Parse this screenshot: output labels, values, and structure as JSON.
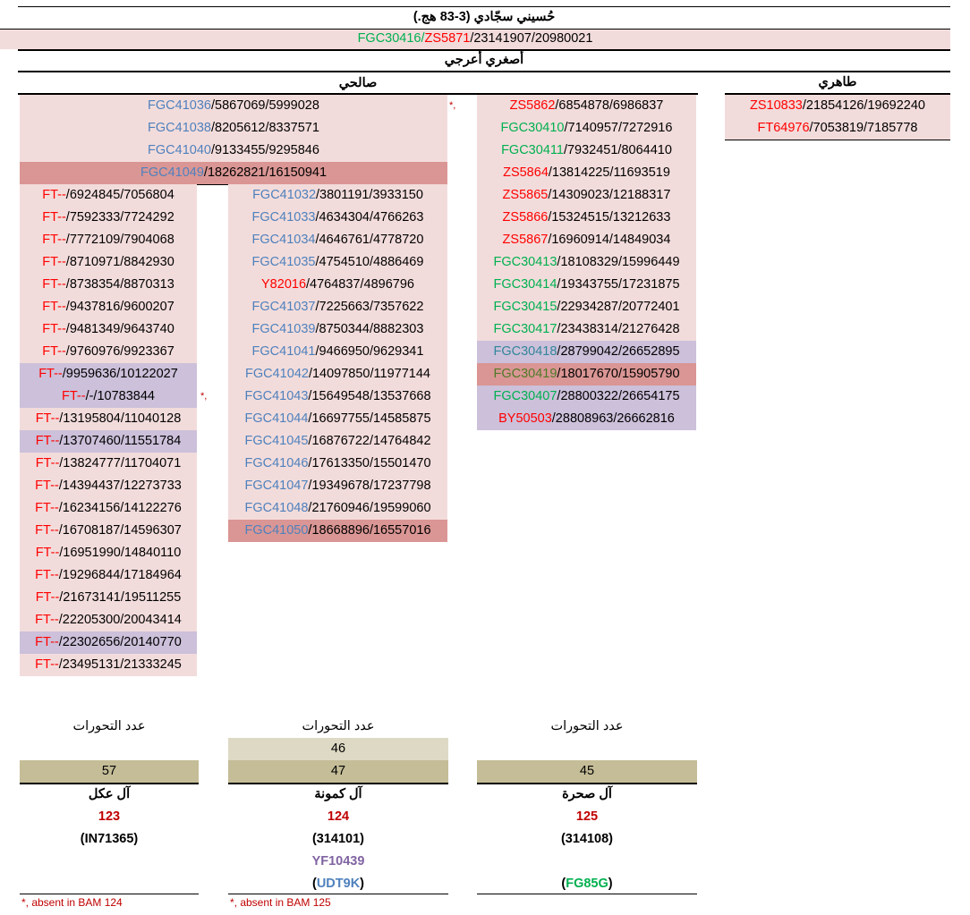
{
  "title": "حُسيني سجّادي (3-83 هج.)",
  "header_code": [
    {
      "text": "FGC30416/",
      "color": "#00b050"
    },
    {
      "text": "ZS5871",
      "color": "#ff0000"
    },
    {
      "text": "/23141907/20980021",
      "color": "#000000"
    }
  ],
  "group": "أصغري أعرجي",
  "branches": [
    "صالحي",
    "طاهري"
  ],
  "marker": "*,",
  "blocks": {
    "top": {
      "color": "#4f81bd",
      "rows": [
        {
          "snp": "FGC41036",
          "rest": "/5867069/5999028"
        },
        {
          "snp": "FGC41038",
          "rest": "/8205612/8337571"
        },
        {
          "snp": "FGC41040",
          "rest": "/9133455/9295846"
        },
        {
          "snp": "FGC41049",
          "rest": "/18262821/16150941",
          "bg": "#da9694"
        }
      ]
    },
    "colA": {
      "color": "#ff0000",
      "rows": [
        {
          "snp": "FT--",
          "rest": "/6924845/7056804"
        },
        {
          "snp": "FT--",
          "rest": "/7592333/7724292"
        },
        {
          "snp": "FT--",
          "rest": "/7772109/7904068"
        },
        {
          "snp": "FT--",
          "rest": "/8710971/8842930"
        },
        {
          "snp": "FT--",
          "rest": "/8738354/8870313"
        },
        {
          "snp": "FT--",
          "rest": "/9437816/9600207"
        },
        {
          "snp": "FT--",
          "rest": "/9481349/9643740"
        },
        {
          "snp": "FT--",
          "rest": "/9760976/9923367"
        },
        {
          "snp": "FT--",
          "rest": "/9959636/10122027",
          "bg": "#ccc0da"
        },
        {
          "snp": "FT--",
          "rest": "/-/10783844",
          "bg": "#ccc0da"
        },
        {
          "snp": "FT--",
          "rest": "/13195804/11040128"
        },
        {
          "snp": "FT--",
          "rest": "/13707460/11551784",
          "bg": "#ccc0da"
        },
        {
          "snp": "FT--",
          "rest": "/13824777/11704071"
        },
        {
          "snp": "FT--",
          "rest": "/14394437/12273733"
        },
        {
          "snp": "FT--",
          "rest": "/16234156/14122276"
        },
        {
          "snp": "FT--",
          "rest": "/16708187/14596307"
        },
        {
          "snp": "FT--",
          "rest": "/16951990/14840110"
        },
        {
          "snp": "FT--",
          "rest": "/19296844/17184964"
        },
        {
          "snp": "FT--",
          "rest": "/21673141/19511255"
        },
        {
          "snp": "FT--",
          "rest": "/22205300/20043414"
        },
        {
          "snp": "FT--",
          "rest": "/22302656/20140770",
          "bg": "#ccc0da"
        },
        {
          "snp": "FT--",
          "rest": "/23495131/21333245"
        }
      ]
    },
    "colB": {
      "color": "#4f81bd",
      "rows": [
        {
          "snp": "FGC41032",
          "rest": "/3801191/3933150"
        },
        {
          "snp": "FGC41033",
          "rest": "/4634304/4766263"
        },
        {
          "snp": "FGC41034",
          "rest": "/4646761/4778720"
        },
        {
          "snp": "FGC41035",
          "rest": "/4754510/4886469"
        },
        {
          "snp": "Y82016",
          "rest": "/4764837/4896796",
          "color": "#ff0000"
        },
        {
          "snp": "FGC41037",
          "rest": "/7225663/7357622"
        },
        {
          "snp": "FGC41039",
          "rest": "/8750344/8882303"
        },
        {
          "snp": "FGC41041",
          "rest": "/9466950/9629341"
        },
        {
          "snp": "FGC41042",
          "rest": "/14097850/11977144"
        },
        {
          "snp": "FGC41043",
          "rest": "/15649548/13537668"
        },
        {
          "snp": "FGC41044",
          "rest": "/16697755/14585875"
        },
        {
          "snp": "FGC41045",
          "rest": "/16876722/14764842"
        },
        {
          "snp": "FGC41046",
          "rest": "/17613350/15501470"
        },
        {
          "snp": "FGC41047",
          "rest": "/19349678/17237798"
        },
        {
          "snp": "FGC41048",
          "rest": "/21760946/19599060"
        },
        {
          "snp": "FGC41050",
          "rest": "/18668896/16557016",
          "bg": "#da9694"
        }
      ]
    },
    "colC": {
      "color": "#00b050",
      "rows": [
        {
          "snp": "ZS5862",
          "rest": "/6854878/6986837",
          "color": "#ff0000"
        },
        {
          "snp": "FGC30410",
          "rest": "/7140957/7272916"
        },
        {
          "snp": "FGC30411",
          "rest": "/7932451/8064410"
        },
        {
          "snp": "ZS5864",
          "rest": "/13814225/11693519",
          "color": "#ff0000"
        },
        {
          "snp": "ZS5865",
          "rest": "/14309023/12188317",
          "color": "#ff0000"
        },
        {
          "snp": "ZS5866",
          "rest": "/15324515/13212633",
          "color": "#ff0000"
        },
        {
          "snp": "ZS5867",
          "rest": "/16960914/14849034",
          "color": "#ff0000"
        },
        {
          "snp": "FGC30413",
          "rest": "/18108329/15996449"
        },
        {
          "snp": "FGC30414",
          "rest": "/19343755/17231875"
        },
        {
          "snp": "FGC30415",
          "rest": "/22934287/20772401"
        },
        {
          "snp": "FGC30417",
          "rest": "/23438314/21276428"
        },
        {
          "snp": "FGC30418",
          "rest": "/28799042/26652895",
          "color": "#31869b",
          "bg": "#ccc0da"
        },
        {
          "snp": "FGC30419",
          "rest": "/18017670/15905790",
          "color": "#4f7a28",
          "bg": "#da9694"
        },
        {
          "snp": "FGC30407",
          "rest": "/28800322/26654175",
          "bg": "#ccc0da"
        },
        {
          "snp": "BY50503",
          "rest": "/28808963/26662816",
          "color": "#ff0000",
          "bg": "#ccc0da"
        }
      ]
    },
    "colD": {
      "color": "#ff0000",
      "rows": [
        {
          "snp": "ZS10833",
          "rest": "/21854126/19692240"
        },
        {
          "snp": "FT64976",
          "rest": "/7053819/7185778"
        }
      ]
    }
  },
  "summary": [
    {
      "label": "عدد التحورات",
      "counts": [
        57
      ],
      "family": "آل عكل",
      "bam": 123,
      "code": [
        {
          "text": "(IN71365)",
          "color": "#000000"
        }
      ],
      "note": "*, absent in BAM 124"
    },
    {
      "label": "عدد التحورات",
      "counts": [
        46,
        47
      ],
      "family": "آل كمونة",
      "bam": 124,
      "code": [
        {
          "text": "(314101)",
          "color": "#000000"
        }
      ],
      "alt": [
        {
          "text": "YF10439",
          "color": "#8064a2"
        }
      ],
      "sub": [
        {
          "text": "(",
          "color": "#000000"
        },
        {
          "text": "UDT9K",
          "color": "#4f81bd"
        },
        {
          "text": ")",
          "color": "#000000"
        }
      ],
      "note": "*, absent in BAM 125"
    },
    {
      "label": "عدد التحورات",
      "counts": [
        45
      ],
      "family": "آل صحرة",
      "bam": 125,
      "code": [
        {
          "text": "(314108)",
          "color": "#000000"
        }
      ],
      "sub": [
        {
          "text": "(",
          "color": "#000000"
        },
        {
          "text": "FG85G",
          "color": "#00b050"
        },
        {
          "text": ")",
          "color": "#000000"
        }
      ]
    }
  ]
}
